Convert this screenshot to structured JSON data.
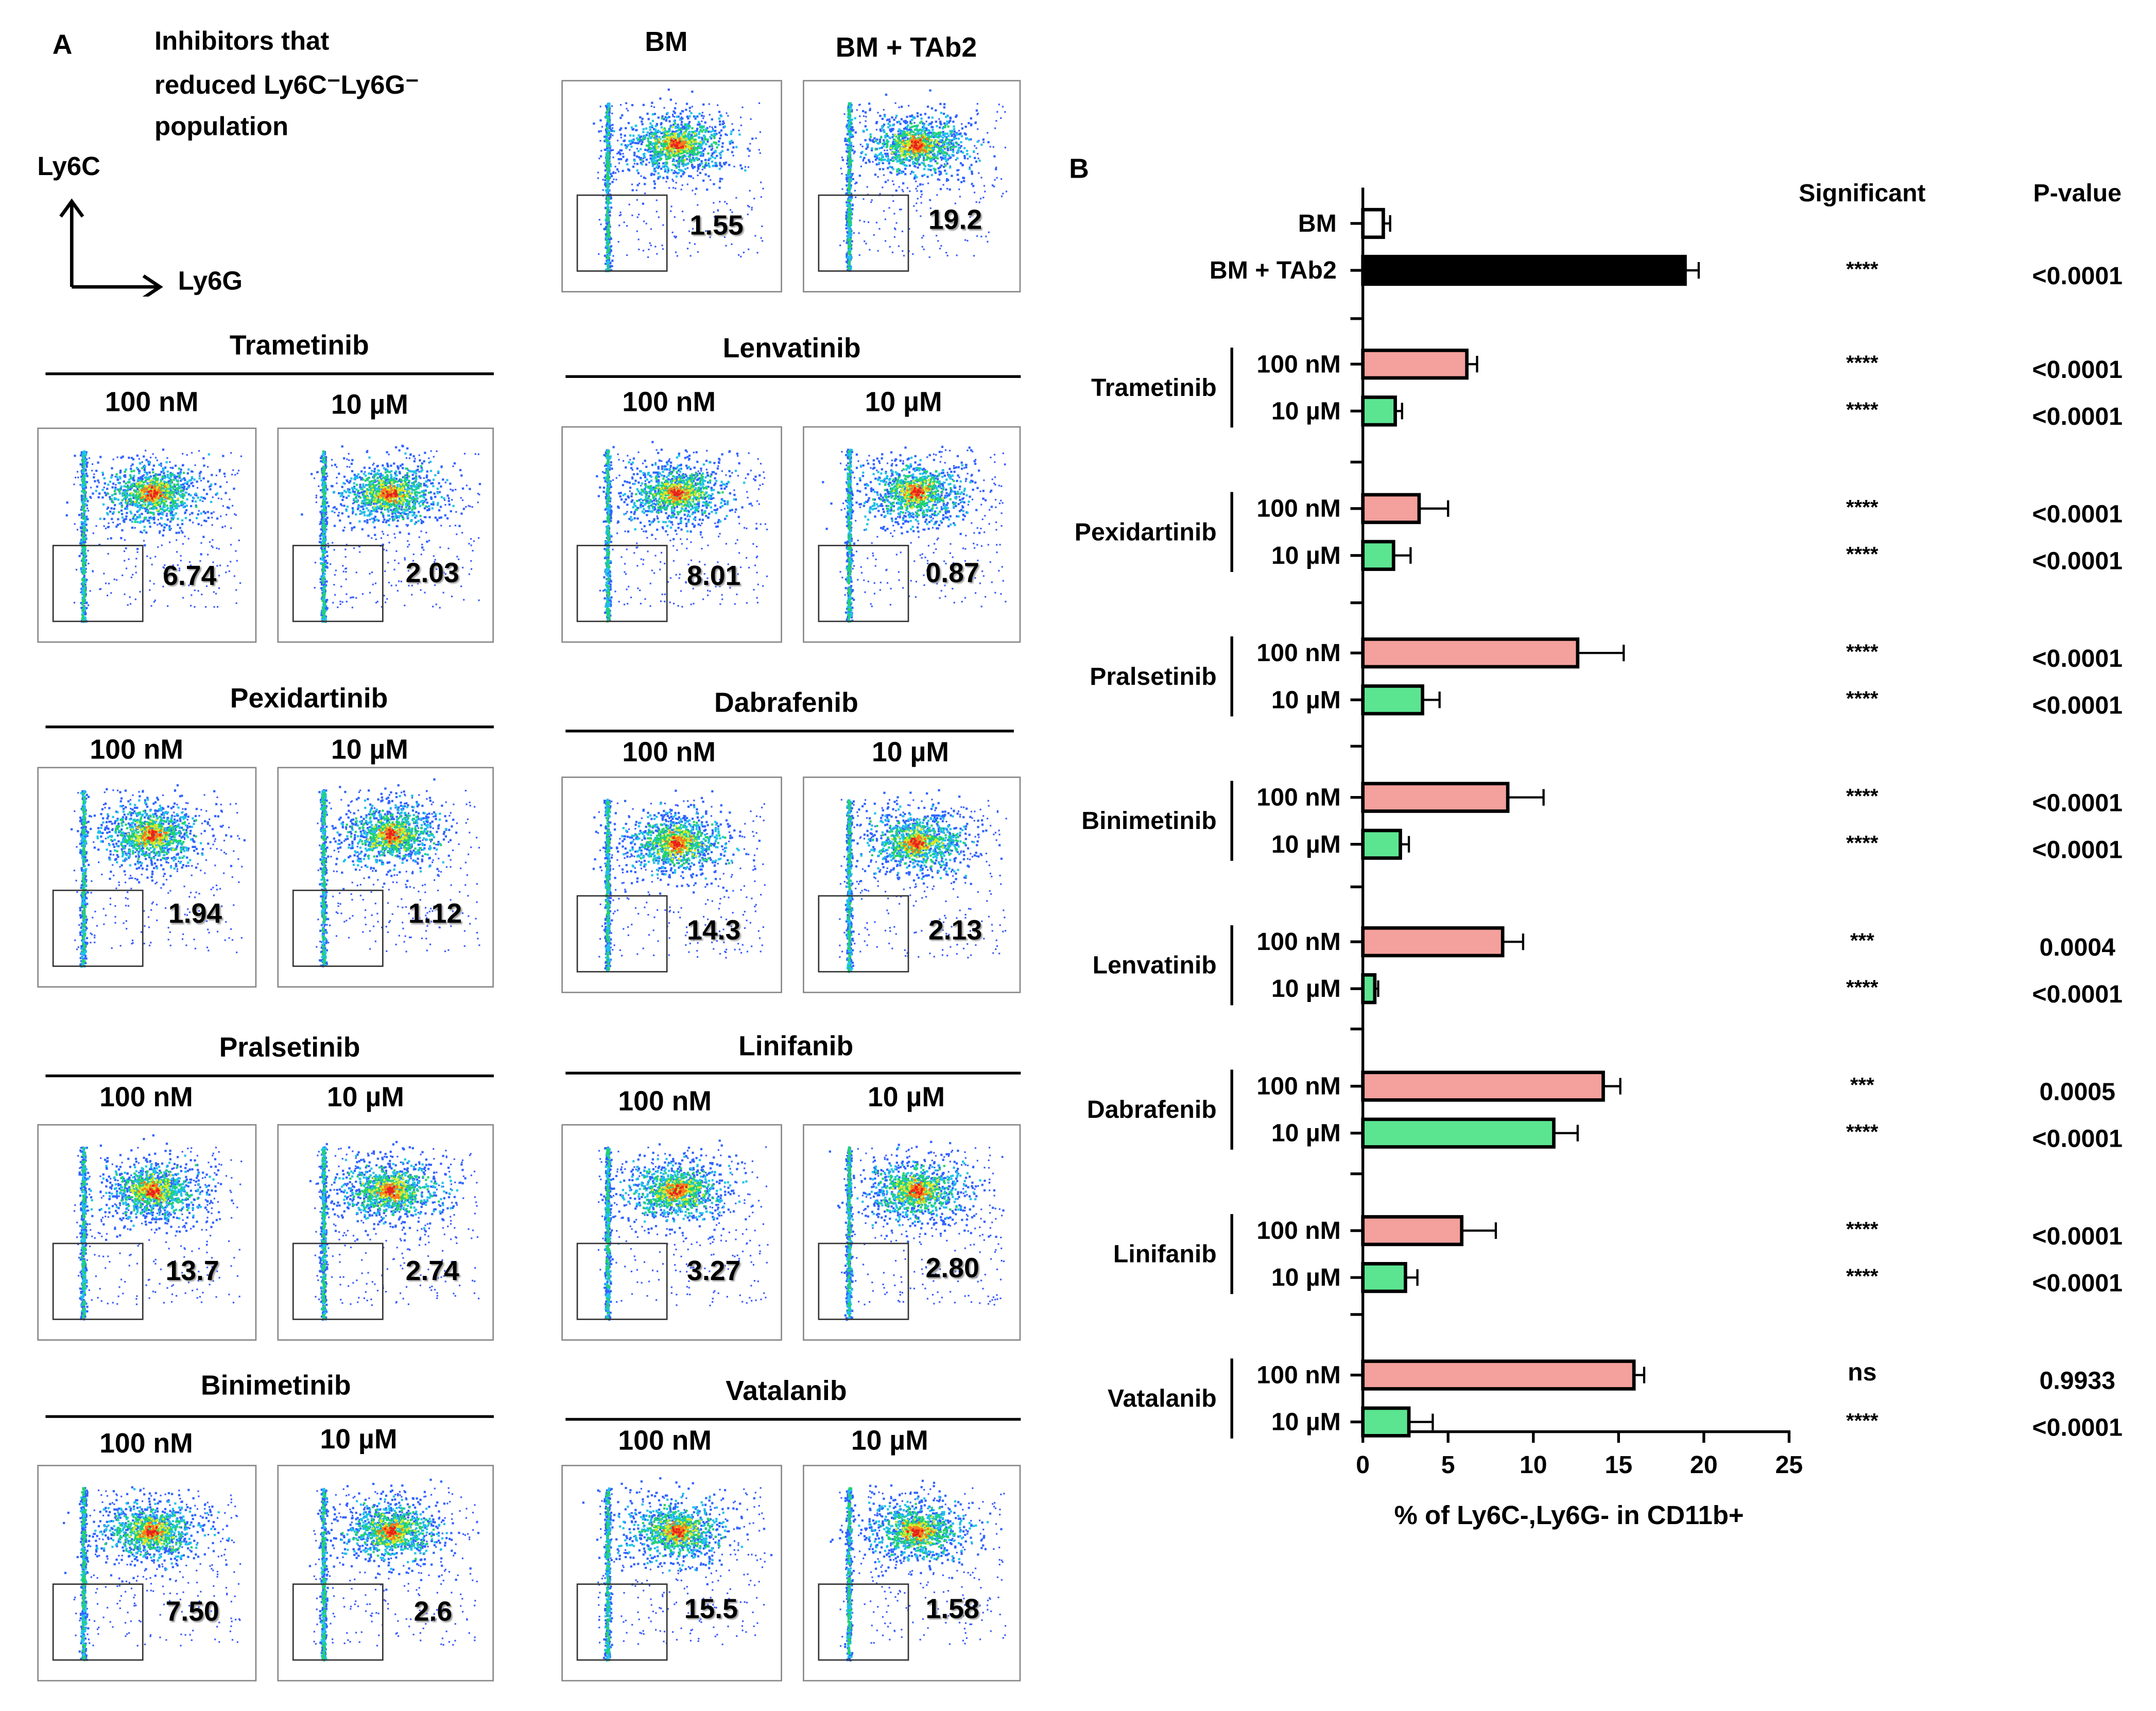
{
  "panel_a": {
    "label": "A",
    "inhibitors_title": [
      "Inhibitors that",
      "reduced Ly6C⁻Ly6G⁻",
      "population"
    ],
    "axis_y": "Ly6C",
    "axis_x": "Ly6G",
    "controls": [
      {
        "label": "BM",
        "value": "1.55"
      },
      {
        "label": "BM + TAb2",
        "value": "19.2"
      }
    ],
    "drugs": [
      {
        "name": "Trametinib",
        "low_label": "100 nM",
        "high_label": "10 µM",
        "low_value": "6.74",
        "high_value": "2.03"
      },
      {
        "name": "Lenvatinib",
        "low_label": "100 nM",
        "high_label": "10 µM",
        "low_value": "8.01",
        "high_value": "0.87"
      },
      {
        "name": "Pexidartinib",
        "low_label": "100 nM",
        "high_label": "10 µM",
        "low_value": "1.94",
        "high_value": "1.12"
      },
      {
        "name": "Dabrafenib",
        "low_label": "100 nM",
        "high_label": "10 µM",
        "low_value": "14.3",
        "high_value": "2.13"
      },
      {
        "name": "Pralsetinib",
        "low_label": "100 nM",
        "high_label": "10  µM",
        "low_value": "13.7",
        "high_value": "2.74"
      },
      {
        "name": "Linifanib",
        "low_label": "100 nM",
        "high_label": "10  µM",
        "low_value": "3.27",
        "high_value": "2.80"
      },
      {
        "name": "Binimetinib",
        "low_label": "100 nM",
        "high_label": "10 µM",
        "low_value": "7.50",
        "high_value": "2.6"
      },
      {
        "name": "Vatalanib",
        "low_label": "100 nM",
        "high_label": "10 µM",
        "low_value": "15.5",
        "high_value": "1.58"
      }
    ]
  },
  "chart_data": {
    "type": "bar",
    "orientation": "horizontal",
    "panel_label": "B",
    "xlabel": "% of Ly6C-,Ly6G- in CD11b+",
    "xlim": [
      0,
      25
    ],
    "xticks": [
      0,
      5,
      10,
      15,
      20,
      25
    ],
    "columns": {
      "significant": "Significant",
      "pvalue": "P-value"
    },
    "controls": [
      {
        "label": "BM",
        "value": 1.2,
        "error": 0.4,
        "color": "#ffffff",
        "sig": "",
        "p": ""
      },
      {
        "label": "BM + TAb2",
        "value": 18.9,
        "error": 0.8,
        "color": "#000000",
        "sig": "****",
        "p": "<0.0001"
      }
    ],
    "groups": [
      {
        "drug": "Trametinib",
        "bars": [
          {
            "dose": "100 nM",
            "value": 6.1,
            "error": 0.6,
            "color": "#f4a09c",
            "sig": "****",
            "p": "<0.0001"
          },
          {
            "dose": "10 µM",
            "value": 1.9,
            "error": 0.4,
            "color": "#5ce591",
            "sig": "****",
            "p": "<0.0001"
          }
        ]
      },
      {
        "drug": "Pexidartinib",
        "bars": [
          {
            "dose": "100 nM",
            "value": 3.3,
            "error": 1.7,
            "color": "#f4a09c",
            "sig": "****",
            "p": "<0.0001"
          },
          {
            "dose": "10 µM",
            "value": 1.8,
            "error": 1.0,
            "color": "#5ce591",
            "sig": "****",
            "p": "<0.0001"
          }
        ]
      },
      {
        "drug": "Pralsetinib",
        "bars": [
          {
            "dose": "100 nM",
            "value": 12.6,
            "error": 2.7,
            "color": "#f4a09c",
            "sig": "****",
            "p": "<0.0001"
          },
          {
            "dose": "10 µM",
            "value": 3.5,
            "error": 1.0,
            "color": "#5ce591",
            "sig": "****",
            "p": "<0.0001"
          }
        ]
      },
      {
        "drug": "Binimetinib",
        "bars": [
          {
            "dose": "100 nM",
            "value": 8.5,
            "error": 2.1,
            "color": "#f4a09c",
            "sig": "****",
            "p": "<0.0001"
          },
          {
            "dose": "10 µM",
            "value": 2.2,
            "error": 0.5,
            "color": "#5ce591",
            "sig": "****",
            "p": "<0.0001"
          }
        ]
      },
      {
        "drug": "Lenvatinib",
        "bars": [
          {
            "dose": "100 nM",
            "value": 8.2,
            "error": 1.2,
            "color": "#f4a09c",
            "sig": "***",
            "p": "0.0004"
          },
          {
            "dose": "10 µM",
            "value": 0.7,
            "error": 0.2,
            "color": "#5ce591",
            "sig": "****",
            "p": "<0.0001"
          }
        ]
      },
      {
        "drug": "Dabrafenib",
        "bars": [
          {
            "dose": "100 nM",
            "value": 14.1,
            "error": 1.0,
            "color": "#f4a09c",
            "sig": "***",
            "p": "0.0005"
          },
          {
            "dose": "10 µM",
            "value": 11.2,
            "error": 1.4,
            "color": "#5ce591",
            "sig": "****",
            "p": "<0.0001"
          }
        ]
      },
      {
        "drug": "Linifanib",
        "bars": [
          {
            "dose": "100 nM",
            "value": 5.8,
            "error": 2.0,
            "color": "#f4a09c",
            "sig": "****",
            "p": "<0.0001"
          },
          {
            "dose": "10 µM",
            "value": 2.5,
            "error": 0.7,
            "color": "#5ce591",
            "sig": "****",
            "p": "<0.0001"
          }
        ]
      },
      {
        "drug": "Vatalanib",
        "bars": [
          {
            "dose": "100 nM",
            "value": 15.9,
            "error": 0.6,
            "color": "#f4a09c",
            "sig": "ns",
            "p": "0.9933"
          },
          {
            "dose": "10 µM",
            "value": 2.7,
            "error": 1.4,
            "color": "#5ce591",
            "sig": "****",
            "p": "<0.0001"
          }
        ]
      }
    ]
  }
}
